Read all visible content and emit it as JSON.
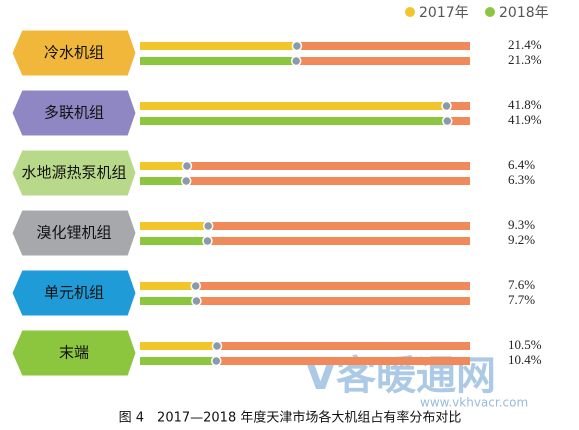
{
  "chart_data": {
    "type": "hbar-progress",
    "title": "图 4　2017—2018 年度天津市场各大机组占有率分布对比",
    "categories": [
      "冷水机组",
      "多联机组",
      "水地源热泵机组",
      "溴化锂机组",
      "单元机组",
      "末端"
    ],
    "category_colors": [
      "#f0b73a",
      "#8f87c4",
      "#b9d98a",
      "#a6a8ab",
      "#1f9bd7",
      "#8cc63f"
    ],
    "xlim": [
      0,
      45
    ],
    "track_color": "#f08a5a",
    "series": [
      {
        "name": "2017年",
        "color": "#f2c62a",
        "values": [
          21.4,
          41.8,
          6.4,
          9.3,
          7.6,
          10.5
        ],
        "value_labels": [
          "21.4%",
          "41.8%",
          "6.4%",
          "9.3%",
          "7.6%",
          "10.5%"
        ]
      },
      {
        "name": "2018年",
        "color": "#8cc63f",
        "values": [
          21.3,
          41.9,
          6.3,
          9.2,
          7.7,
          10.4
        ],
        "value_labels": [
          "21.3%",
          "41.9%",
          "6.3%",
          "9.2%",
          "7.7%",
          "10.4%"
        ]
      }
    ],
    "watermark": "V客暖通网",
    "watermark_url": "www.vkhvacr.com"
  }
}
